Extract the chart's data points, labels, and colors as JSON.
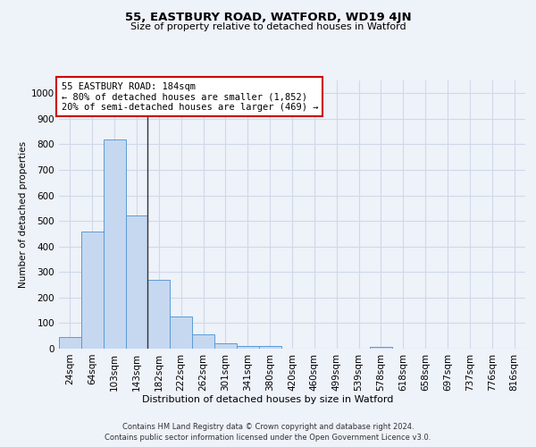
{
  "title1": "55, EASTBURY ROAD, WATFORD, WD19 4JN",
  "title2": "Size of property relative to detached houses in Watford",
  "xlabel": "Distribution of detached houses by size in Watford",
  "ylabel": "Number of detached properties",
  "bar_labels": [
    "24sqm",
    "64sqm",
    "103sqm",
    "143sqm",
    "182sqm",
    "222sqm",
    "262sqm",
    "301sqm",
    "341sqm",
    "380sqm",
    "420sqm",
    "460sqm",
    "499sqm",
    "539sqm",
    "578sqm",
    "618sqm",
    "658sqm",
    "697sqm",
    "737sqm",
    "776sqm",
    "816sqm"
  ],
  "bar_values": [
    45,
    460,
    820,
    520,
    270,
    125,
    55,
    22,
    10,
    12,
    0,
    0,
    0,
    0,
    7,
    0,
    0,
    0,
    0,
    0,
    0
  ],
  "bar_color": "#c5d8f0",
  "bar_edge_color": "#5b9bd5",
  "vline_x_index": 3.5,
  "vline_color": "#333333",
  "ylim": [
    0,
    1050
  ],
  "yticks": [
    0,
    100,
    200,
    300,
    400,
    500,
    600,
    700,
    800,
    900,
    1000
  ],
  "annotation_title": "55 EASTBURY ROAD: 184sqm",
  "annotation_line1": "← 80% of detached houses are smaller (1,852)",
  "annotation_line2": "20% of semi-detached houses are larger (469) →",
  "annotation_box_color": "#ffffff",
  "annotation_box_edge": "#cc0000",
  "footnote1": "Contains HM Land Registry data © Crown copyright and database right 2024.",
  "footnote2": "Contains public sector information licensed under the Open Government Licence v3.0.",
  "background_color": "#eef2f9",
  "plot_bg_color": "#eef2f9",
  "grid_color": "#d0d8e8"
}
